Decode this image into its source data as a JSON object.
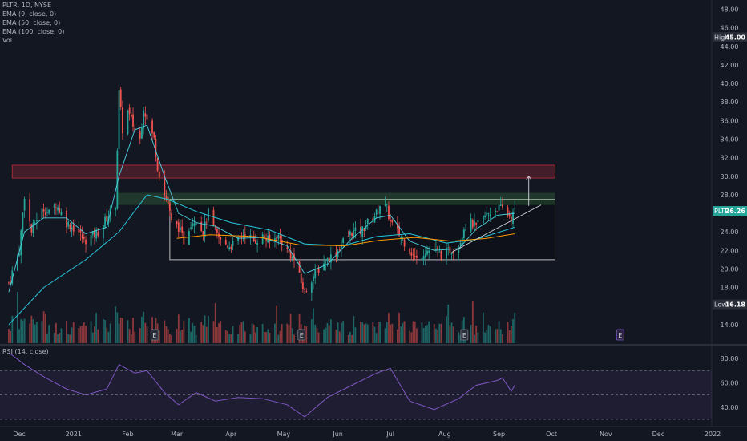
{
  "legend": {
    "symbol": "PLTR, 1D, NYSE",
    "ema9": "EMA (9, close, 0)",
    "ema50": "EMA (50, close, 0)",
    "ema100": "EMA (100, close, 0)",
    "vol": "Vol",
    "rsi": "RSI (14, close)"
  },
  "badges": {
    "high_label": "High",
    "high_value": "45.00",
    "last_label": "PLTR",
    "last_value": "26.26",
    "low_label": "Low",
    "low_value": "16.18",
    "earnings": "E"
  },
  "colors": {
    "background": "#131722",
    "up": "#26a69a",
    "down": "#ef5350",
    "ema9": "#4dd0e1",
    "ema50": "#26c6da",
    "ema100": "#ff9800",
    "rsi": "#7e57c2",
    "resistance_zone": "#f23645",
    "range_zone": "#4caf50"
  },
  "chart_data": [
    {
      "type": "candlestick",
      "title": "PLTR, 1D, NYSE",
      "ylim": [
        12,
        49
      ],
      "y_ticks": [
        "14.00",
        "16.00",
        "18.00",
        "20.00",
        "22.00",
        "24.00",
        "26.00",
        "28.00",
        "30.00",
        "32.00",
        "34.00",
        "36.00",
        "38.00",
        "40.00",
        "42.00",
        "44.00",
        "46.00",
        "48.00"
      ],
      "x_ticks": [
        "Dec",
        "2021",
        "Feb",
        "Mar",
        "Apr",
        "May",
        "Jun",
        "Jul",
        "Aug",
        "Sep",
        "Oct",
        "Nov",
        "Dec",
        "2022"
      ],
      "x_tick_dates": [
        "2020-12-01",
        "2021-01-01",
        "2021-02-01",
        "2021-03-01",
        "2021-04-01",
        "2021-05-01",
        "2021-06-01",
        "2021-07-01",
        "2021-08-01",
        "2021-09-01",
        "2021-10-01",
        "2021-11-01",
        "2021-12-01",
        "2022-01-01"
      ],
      "x_range": [
        "2020-11-20",
        "2022-01-06"
      ],
      "high": 45.0,
      "low": 16.18,
      "last": 26.26,
      "close_series": [
        [
          "2020-11-25",
          18.5
        ],
        [
          "2020-12-01",
          22
        ],
        [
          "2020-12-04",
          28
        ],
        [
          "2020-12-08",
          24
        ],
        [
          "2020-12-11",
          25.5
        ],
        [
          "2020-12-15",
          26.5
        ],
        [
          "2020-12-18",
          26
        ],
        [
          "2020-12-22",
          27
        ],
        [
          "2020-12-28",
          25
        ],
        [
          "2021-01-04",
          24
        ],
        [
          "2021-01-07",
          23
        ],
        [
          "2021-01-11",
          23.5
        ],
        [
          "2021-01-15",
          24
        ],
        [
          "2021-01-20",
          25.5
        ],
        [
          "2021-01-25",
          27
        ],
        [
          "2021-01-27",
          39
        ],
        [
          "2021-01-29",
          35
        ],
        [
          "2021-02-01",
          37
        ],
        [
          "2021-02-03",
          36
        ],
        [
          "2021-02-05",
          35
        ],
        [
          "2021-02-08",
          34
        ],
        [
          "2021-02-10",
          37.5
        ],
        [
          "2021-02-12",
          36
        ],
        [
          "2021-02-16",
          34
        ],
        [
          "2021-02-18",
          31
        ],
        [
          "2021-02-22",
          28
        ],
        [
          "2021-02-24",
          27
        ],
        [
          "2021-02-26",
          25
        ],
        [
          "2021-03-02",
          24.5
        ],
        [
          "2021-03-05",
          23
        ],
        [
          "2021-03-09",
          25
        ],
        [
          "2021-03-12",
          25.5
        ],
        [
          "2021-03-16",
          24
        ],
        [
          "2021-03-19",
          26
        ],
        [
          "2021-03-23",
          24
        ],
        [
          "2021-03-26",
          23
        ],
        [
          "2021-03-31",
          22.5
        ],
        [
          "2021-04-05",
          23
        ],
        [
          "2021-04-09",
          24
        ],
        [
          "2021-04-14",
          23
        ],
        [
          "2021-04-19",
          23.5
        ],
        [
          "2021-04-23",
          23
        ],
        [
          "2021-04-28",
          23.5
        ],
        [
          "2021-05-03",
          22
        ],
        [
          "2021-05-07",
          21
        ],
        [
          "2021-05-11",
          18.5
        ],
        [
          "2021-05-13",
          17.5
        ],
        [
          "2021-05-17",
          19
        ],
        [
          "2021-05-21",
          20
        ],
        [
          "2021-05-26",
          21
        ],
        [
          "2021-06-01",
          22
        ],
        [
          "2021-06-04",
          23
        ],
        [
          "2021-06-09",
          24
        ],
        [
          "2021-06-14",
          24
        ],
        [
          "2021-06-18",
          25
        ],
        [
          "2021-06-23",
          26
        ],
        [
          "2021-06-25",
          27
        ],
        [
          "2021-06-29",
          26.5
        ],
        [
          "2021-07-01",
          25
        ],
        [
          "2021-07-07",
          23.5
        ],
        [
          "2021-07-12",
          22
        ],
        [
          "2021-07-16",
          21
        ],
        [
          "2021-07-21",
          22
        ],
        [
          "2021-07-26",
          22
        ],
        [
          "2021-07-30",
          21.5
        ],
        [
          "2021-08-04",
          22
        ],
        [
          "2021-08-09",
          22.5
        ],
        [
          "2021-08-12",
          24.5
        ],
        [
          "2021-08-16",
          25
        ],
        [
          "2021-08-19",
          24.5
        ],
        [
          "2021-08-23",
          25.5
        ],
        [
          "2021-08-26",
          26
        ],
        [
          "2021-08-31",
          26.5
        ],
        [
          "2021-09-03",
          26.5
        ],
        [
          "2021-09-08",
          25.5
        ],
        [
          "2021-09-10",
          26.26
        ]
      ],
      "ema9": [
        [
          "2020-11-25",
          17.5
        ],
        [
          "2020-12-04",
          24
        ],
        [
          "2020-12-15",
          25.5
        ],
        [
          "2020-12-28",
          25.5
        ],
        [
          "2021-01-08",
          23.8
        ],
        [
          "2021-01-20",
          24.5
        ],
        [
          "2021-01-27",
          30
        ],
        [
          "2021-02-05",
          35
        ],
        [
          "2021-02-12",
          35.5
        ],
        [
          "2021-02-22",
          30
        ],
        [
          "2021-03-02",
          26
        ],
        [
          "2021-03-12",
          25
        ],
        [
          "2021-03-23",
          24.6
        ],
        [
          "2021-04-05",
          23.3
        ],
        [
          "2021-04-19",
          23.4
        ],
        [
          "2021-05-03",
          22.5
        ],
        [
          "2021-05-13",
          19.5
        ],
        [
          "2021-05-26",
          20.5
        ],
        [
          "2021-06-09",
          23.3
        ],
        [
          "2021-06-23",
          25.5
        ],
        [
          "2021-07-01",
          25.8
        ],
        [
          "2021-07-12",
          23
        ],
        [
          "2021-07-26",
          22
        ],
        [
          "2021-08-09",
          22.2
        ],
        [
          "2021-08-19",
          24.3
        ],
        [
          "2021-08-31",
          25.8
        ],
        [
          "2021-09-10",
          26
        ]
      ],
      "ema50": [
        [
          "2020-11-25",
          14
        ],
        [
          "2020-12-15",
          18
        ],
        [
          "2021-01-08",
          21
        ],
        [
          "2021-01-27",
          24
        ],
        [
          "2021-02-12",
          28
        ],
        [
          "2021-02-24",
          27.5
        ],
        [
          "2021-03-12",
          26.2
        ],
        [
          "2021-04-01",
          25
        ],
        [
          "2021-04-23",
          24.2
        ],
        [
          "2021-05-13",
          22.7
        ],
        [
          "2021-06-04",
          22.5
        ],
        [
          "2021-06-23",
          23.5
        ],
        [
          "2021-07-12",
          23.8
        ],
        [
          "2021-08-02",
          22.8
        ],
        [
          "2021-08-19",
          23.2
        ],
        [
          "2021-09-10",
          24.5
        ]
      ],
      "ema100": [
        [
          "2021-03-01",
          23.3
        ],
        [
          "2021-03-20",
          23.7
        ],
        [
          "2021-04-15",
          23.5
        ],
        [
          "2021-05-10",
          22.6
        ],
        [
          "2021-06-05",
          22.5
        ],
        [
          "2021-06-25",
          23.1
        ],
        [
          "2021-07-15",
          23.4
        ],
        [
          "2021-08-05",
          23
        ],
        [
          "2021-08-25",
          23.3
        ],
        [
          "2021-09-10",
          23.8
        ]
      ],
      "zones": [
        {
          "name": "resistance",
          "from": "2020-11-27",
          "to": "2021-10-03",
          "y0": 29.8,
          "y1": 31.2
        },
        {
          "name": "range",
          "from": "2021-02-25",
          "to": "2021-10-03",
          "y0": 21.0,
          "y1": 27.5
        }
      ],
      "earnings_dates": [
        "2021-02-16",
        "2021-05-11",
        "2021-08-12",
        "2021-11-09"
      ]
    },
    {
      "type": "line",
      "title": "RSI (14, close)",
      "ylim": [
        28,
        90
      ],
      "y_ticks": [
        "40.00",
        "60.00",
        "80.00"
      ],
      "bands": [
        30,
        50,
        70
      ],
      "values": [
        [
          "2020-11-25",
          85
        ],
        [
          "2020-12-04",
          75
        ],
        [
          "2020-12-15",
          65
        ],
        [
          "2020-12-28",
          55
        ],
        [
          "2021-01-08",
          50
        ],
        [
          "2021-01-20",
          55
        ],
        [
          "2021-01-27",
          75
        ],
        [
          "2021-02-05",
          68
        ],
        [
          "2021-02-12",
          70
        ],
        [
          "2021-02-22",
          52
        ],
        [
          "2021-03-02",
          42
        ],
        [
          "2021-03-12",
          52
        ],
        [
          "2021-03-23",
          45
        ],
        [
          "2021-04-05",
          48
        ],
        [
          "2021-04-19",
          47
        ],
        [
          "2021-05-03",
          42
        ],
        [
          "2021-05-13",
          32
        ],
        [
          "2021-05-26",
          48
        ],
        [
          "2021-06-09",
          58
        ],
        [
          "2021-06-23",
          68
        ],
        [
          "2021-07-01",
          72
        ],
        [
          "2021-07-12",
          45
        ],
        [
          "2021-07-26",
          38
        ],
        [
          "2021-08-09",
          47
        ],
        [
          "2021-08-19",
          58
        ],
        [
          "2021-08-31",
          62
        ],
        [
          "2021-09-03",
          64
        ],
        [
          "2021-09-08",
          53
        ],
        [
          "2021-09-10",
          58
        ]
      ]
    }
  ]
}
